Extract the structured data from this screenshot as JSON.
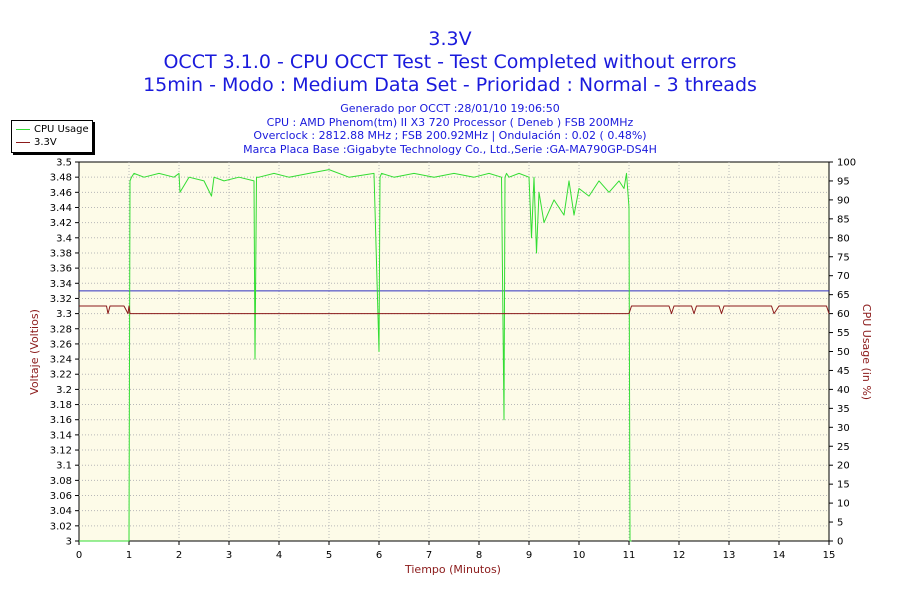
{
  "chart_data": {
    "type": "line",
    "title": "3.3V",
    "subtitle_1": "OCCT 3.1.0 - CPU OCCT Test - Test Completed without errors",
    "subtitle_2": "15min - Modo : Medium Data Set - Prioridad : Normal - 3 threads",
    "info_lines": [
      "Generado por OCCT :28/01/10 19:06:50",
      "CPU : AMD Phenom(tm) II X3 720 Processor ( Deneb ) FSB 200MHz",
      "Overclock : 2812.88 MHz ; FSB 200.92MHz | Ondulación : 0.02 ( 0.48%)",
      "Marca Placa Base :Gigabyte Technology Co., Ltd.,Serie :GA-MA790GP-DS4H"
    ],
    "xlabel": "Tiempo (Minutos)",
    "ylabel": "Voltaje (Voltios)",
    "y2label": "CPU Usage (in %)",
    "xlim": [
      0,
      15
    ],
    "ylim": [
      3,
      3.5
    ],
    "y2lim": [
      0,
      100
    ],
    "x_ticks": [
      "0",
      "1",
      "2",
      "3",
      "4",
      "5",
      "6",
      "7",
      "8",
      "9",
      "10",
      "11",
      "12",
      "13",
      "14",
      "15"
    ],
    "y_ticks": [
      "3",
      "3.02",
      "3.04",
      "3.06",
      "3.08",
      "3.1",
      "3.12",
      "3.14",
      "3.16",
      "3.18",
      "3.2",
      "3.22",
      "3.24",
      "3.26",
      "3.28",
      "3.3",
      "3.32",
      "3.34",
      "3.36",
      "3.38",
      "3.4",
      "3.42",
      "3.44",
      "3.46",
      "3.48",
      "3.5"
    ],
    "y2_ticks": [
      "0",
      "5",
      "10",
      "15",
      "20",
      "25",
      "30",
      "35",
      "40",
      "45",
      "50",
      "55",
      "60",
      "65",
      "70",
      "75",
      "80",
      "85",
      "90",
      "95",
      "100"
    ],
    "reference_line": {
      "y": 3.33,
      "color": "#3030c0"
    },
    "grid": true,
    "legend_position": "top-left",
    "series": [
      {
        "name": "CPU Usage",
        "axis": "right",
        "color": "#33dd33",
        "x": [
          0,
          1.0,
          1.02,
          1.05,
          1.1,
          1.3,
          1.6,
          1.9,
          2.0,
          2.02,
          2.2,
          2.5,
          2.65,
          2.7,
          2.9,
          3.2,
          3.5,
          3.52,
          3.55,
          3.6,
          3.9,
          4.2,
          4.6,
          5.0,
          5.4,
          5.9,
          6.0,
          6.02,
          6.05,
          6.3,
          6.7,
          7.1,
          7.5,
          7.9,
          8.2,
          8.45,
          8.5,
          8.52,
          8.55,
          8.6,
          8.8,
          9.0,
          9.05,
          9.1,
          9.15,
          9.2,
          9.3,
          9.5,
          9.7,
          9.8,
          9.9,
          10.0,
          10.2,
          10.4,
          10.6,
          10.8,
          10.9,
          10.95,
          11.0,
          11.02,
          11.05
        ],
        "y": [
          0,
          0,
          95,
          96,
          97,
          96,
          97,
          96,
          97,
          92,
          96,
          95,
          91,
          96,
          95,
          96,
          95,
          48,
          96,
          96,
          97,
          96,
          97,
          98,
          96,
          97,
          50,
          96,
          97,
          96,
          97,
          96,
          97,
          96,
          97,
          96,
          32,
          96,
          97,
          96,
          97,
          96,
          80,
          96,
          76,
          92,
          84,
          90,
          86,
          95,
          86,
          93,
          91,
          95,
          92,
          95,
          93,
          97,
          88,
          0,
          0
        ]
      },
      {
        "name": "3.3V",
        "axis": "left",
        "color": "#8b1a1a",
        "x": [
          0,
          0.55,
          0.58,
          0.62,
          0.9,
          0.98,
          1.0,
          1.02,
          11.0,
          11.05,
          11.1,
          11.8,
          11.85,
          11.9,
          12.0,
          12.25,
          12.3,
          12.35,
          12.8,
          12.85,
          12.9,
          13.0,
          13.85,
          13.9,
          14.0,
          14.95,
          15.0
        ],
        "y": [
          3.31,
          3.31,
          3.3,
          3.31,
          3.31,
          3.3,
          3.31,
          3.3,
          3.3,
          3.31,
          3.31,
          3.31,
          3.3,
          3.31,
          3.31,
          3.31,
          3.3,
          3.31,
          3.31,
          3.3,
          3.31,
          3.31,
          3.31,
          3.3,
          3.31,
          3.31,
          3.3
        ]
      }
    ]
  }
}
